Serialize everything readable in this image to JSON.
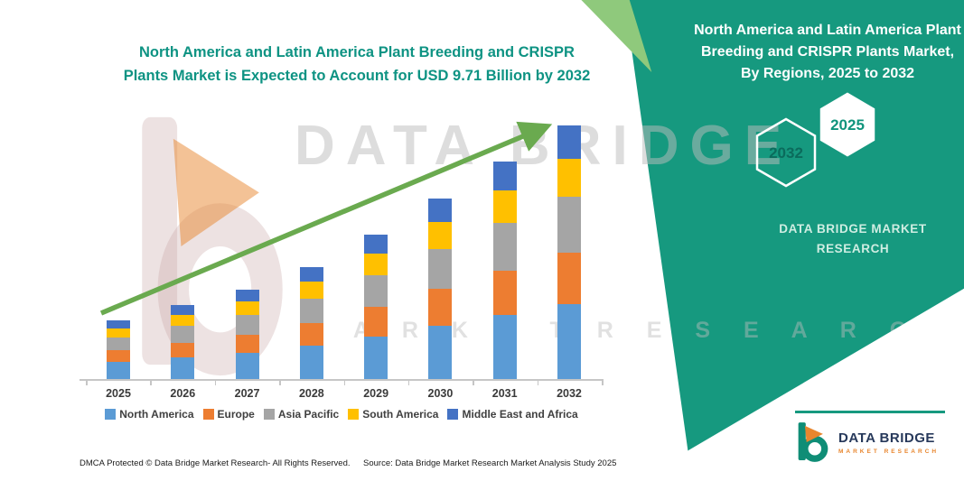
{
  "titles": {
    "main": "North America and Latin America Plant Breeding and CRISPR Plants Market is Expected to Account for USD 9.71 Billion by 2032",
    "panel": "North America and Latin America Plant Breeding and CRISPR Plants Market, By Regions, 2025 to 2032"
  },
  "side_panel": {
    "hexagon_back": "2032",
    "hexagon_front": "2025",
    "brand": "DATA BRIDGE MARKET RESEARCH"
  },
  "watermark": {
    "line1": "DATA BRIDGE",
    "line2": "M A R K E T    R E S E A R C H"
  },
  "chart_data": {
    "type": "bar",
    "stacked": true,
    "title": "North America and Latin America Plant Breeding and CRISPR Plants Market, By Regions, 2025 to 2032",
    "value_unit": "USD Billion",
    "highlight_value": "USD 9.71 Billion by 2032",
    "categories": [
      "2025",
      "2026",
      "2027",
      "2028",
      "2029",
      "2030",
      "2031",
      "2032"
    ],
    "series": [
      {
        "name": "North America",
        "color": "#5B9BD5",
        "values": [
          0.68,
          0.86,
          1.04,
          1.3,
          1.67,
          2.08,
          2.5,
          2.91
        ]
      },
      {
        "name": "Europe",
        "color": "#ED7D31",
        "values": [
          0.45,
          0.57,
          0.69,
          0.87,
          1.11,
          1.39,
          1.67,
          1.94
        ]
      },
      {
        "name": "Asia Pacific",
        "color": "#A5A5A5",
        "values": [
          0.5,
          0.63,
          0.76,
          0.95,
          1.22,
          1.53,
          1.83,
          2.14
        ]
      },
      {
        "name": "South America",
        "color": "#FFC000",
        "values": [
          0.34,
          0.43,
          0.52,
          0.65,
          0.83,
          1.04,
          1.25,
          1.46
        ]
      },
      {
        "name": "Middle East and Africa",
        "color": "#4472C4",
        "values": [
          0.29,
          0.37,
          0.45,
          0.56,
          0.72,
          0.9,
          1.08,
          1.26
        ]
      }
    ],
    "totals": [
      2.26,
      2.86,
      3.46,
      4.33,
      5.55,
      6.94,
      8.33,
      9.71
    ],
    "ylim": [
      0,
      10
    ],
    "grid": false,
    "y_axis_labels": false,
    "legend_position": "bottom",
    "trend_arrow": true
  },
  "footer": {
    "dmca": "DMCA Protected © Data Bridge Market Research-  All Rights Reserved.",
    "source": "Source: Data Bridge Market Research  Market Analysis Study 2025"
  },
  "logo": {
    "name": "DATA BRIDGE",
    "tagline": "MARKET RESEARCH"
  },
  "colors": {
    "panel_teal": "#16997F",
    "panel_accent_green": "#8FC97C",
    "title_teal": "#0E9383",
    "arrow_green": "#6AAA4F",
    "watermark_gray": "#BDBDBD",
    "brand_light": "#CFEDE2",
    "hex_label_dark": "#0B6B5C",
    "hex_label_front": "#10947C",
    "logo_navy": "#27395B",
    "logo_orange": "#E8862E",
    "axis_gray": "#C6C6C6"
  }
}
